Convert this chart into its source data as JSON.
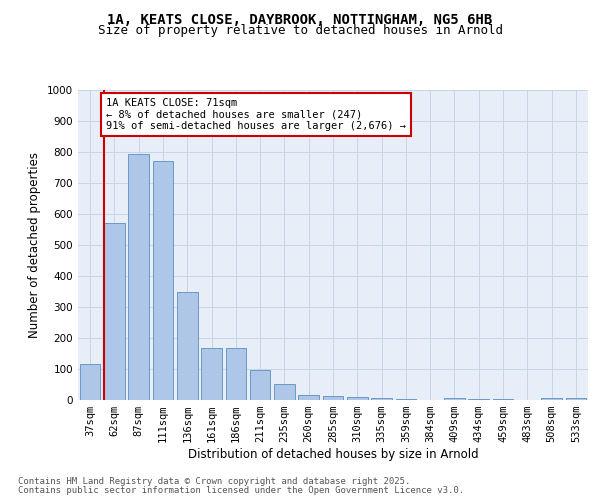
{
  "title_line1": "1A, KEATS CLOSE, DAYBROOK, NOTTINGHAM, NG5 6HB",
  "title_line2": "Size of property relative to detached houses in Arnold",
  "xlabel": "Distribution of detached houses by size in Arnold",
  "ylabel": "Number of detached properties",
  "categories": [
    "37sqm",
    "62sqm",
    "87sqm",
    "111sqm",
    "136sqm",
    "161sqm",
    "186sqm",
    "211sqm",
    "235sqm",
    "260sqm",
    "285sqm",
    "310sqm",
    "335sqm",
    "359sqm",
    "384sqm",
    "409sqm",
    "434sqm",
    "459sqm",
    "483sqm",
    "508sqm",
    "533sqm"
  ],
  "values": [
    115,
    570,
    795,
    770,
    350,
    168,
    168,
    97,
    52,
    17,
    13,
    10,
    7,
    3,
    0,
    7,
    2,
    2,
    0,
    7,
    7
  ],
  "bar_color": "#aec6e8",
  "bar_edge_color": "#5a8fc0",
  "grid_color": "#c8d4e8",
  "background_color": "#e8eef8",
  "vline_color": "#cc0000",
  "annotation_text": "1A KEATS CLOSE: 71sqm\n← 8% of detached houses are smaller (247)\n91% of semi-detached houses are larger (2,676) →",
  "annotation_box_color": "#cc0000",
  "ylim": [
    0,
    1000
  ],
  "yticks": [
    0,
    100,
    200,
    300,
    400,
    500,
    600,
    700,
    800,
    900,
    1000
  ],
  "footer_line1": "Contains HM Land Registry data © Crown copyright and database right 2025.",
  "footer_line2": "Contains public sector information licensed under the Open Government Licence v3.0.",
  "title_fontsize": 10,
  "subtitle_fontsize": 9,
  "axis_label_fontsize": 8.5,
  "tick_fontsize": 7.5,
  "annotation_fontsize": 7.5,
  "footer_fontsize": 6.5
}
